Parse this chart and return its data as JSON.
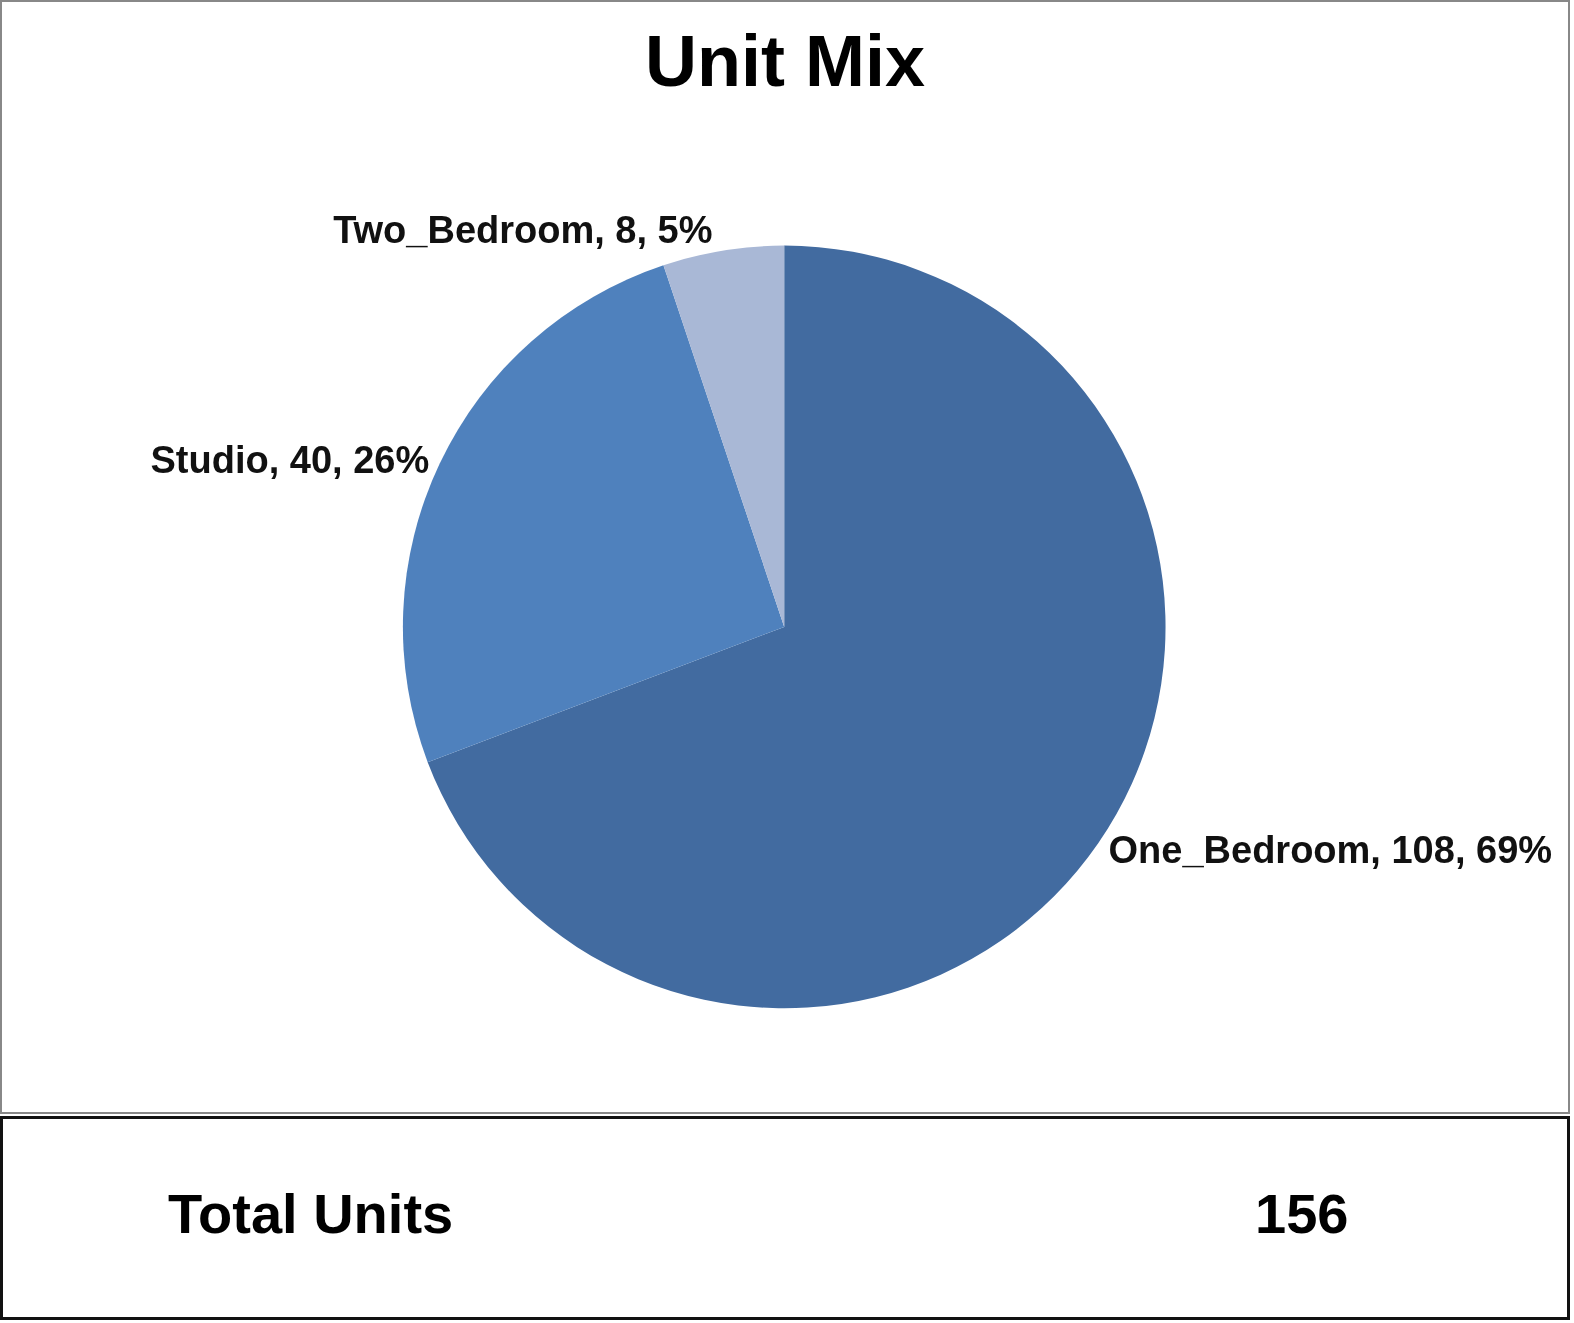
{
  "chart_data": {
    "type": "pie",
    "title": "Unit Mix",
    "categories": [
      "One_Bedroom",
      "Studio",
      "Two_Bedroom"
    ],
    "values": [
      108,
      40,
      8
    ],
    "value_labels": [
      "108, 69%",
      "40, 26%",
      "8, 5%"
    ],
    "colors": [
      "#426ba0",
      "#4f81bd",
      "#a9b8d6"
    ],
    "legend": false,
    "annotations": [
      "Total Units",
      "156"
    ]
  }
}
